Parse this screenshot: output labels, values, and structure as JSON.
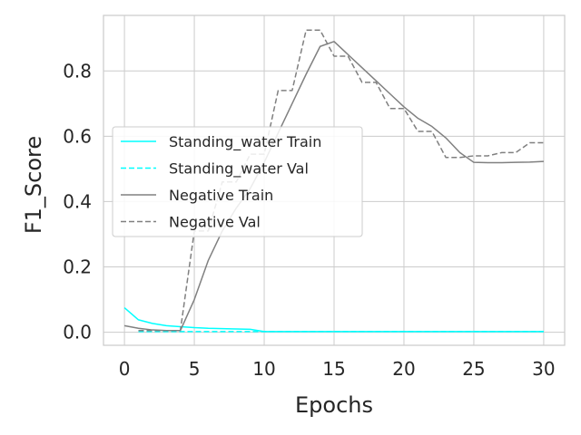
{
  "chart_data": {
    "type": "line",
    "title": "",
    "xlabel": "Epochs",
    "ylabel": "F1_Score",
    "xlim": [
      -1.5,
      31.5
    ],
    "ylim": [
      -0.04,
      0.97
    ],
    "x_ticks": [
      0,
      5,
      10,
      15,
      20,
      25,
      30
    ],
    "x_tick_labels": [
      "0",
      "5",
      "10",
      "15",
      "20",
      "25",
      "30"
    ],
    "y_ticks": [
      0.0,
      0.2,
      0.4,
      0.6,
      0.8
    ],
    "y_tick_labels": [
      "0.0",
      "0.2",
      "0.4",
      "0.6",
      "0.8"
    ],
    "grid": true,
    "legend_position": "center-left",
    "series": [
      {
        "name": "Standing_water Train",
        "color": "#00ffff",
        "style": "solid",
        "x": [
          0,
          1,
          2,
          3,
          4,
          5,
          6,
          7,
          8,
          9,
          10,
          11,
          12,
          13,
          14,
          15,
          16,
          17,
          18,
          19,
          20,
          21,
          22,
          23,
          24,
          25,
          26,
          27,
          28,
          29,
          30
        ],
        "y": [
          0.075,
          0.038,
          0.027,
          0.02,
          0.017,
          0.014,
          0.012,
          0.011,
          0.01,
          0.009,
          0.002,
          0.002,
          0.002,
          0.002,
          0.002,
          0.002,
          0.002,
          0.002,
          0.002,
          0.002,
          0.002,
          0.002,
          0.002,
          0.002,
          0.002,
          0.002,
          0.002,
          0.002,
          0.002,
          0.002,
          0.002
        ]
      },
      {
        "name": "Standing_water Val",
        "color": "#00ffff",
        "style": "dashed",
        "x": [
          1,
          2,
          3,
          4,
          5,
          6,
          7,
          8,
          9,
          10,
          11,
          12,
          13,
          14,
          15,
          16,
          17,
          18,
          19,
          20,
          21,
          22,
          23,
          24,
          25,
          26,
          27,
          28,
          29,
          30
        ],
        "y": [
          0.002,
          0.002,
          0.002,
          0.002,
          0.002,
          0.002,
          0.002,
          0.002,
          0.002,
          0.002,
          0.002,
          0.002,
          0.002,
          0.002,
          0.002,
          0.002,
          0.002,
          0.002,
          0.002,
          0.002,
          0.002,
          0.002,
          0.002,
          0.002,
          0.002,
          0.002,
          0.002,
          0.002,
          0.002,
          0.002
        ]
      },
      {
        "name": "Negative Train",
        "color": "#808080",
        "style": "solid",
        "x": [
          0,
          1,
          2,
          3,
          4,
          5,
          6,
          7,
          8,
          9,
          10,
          11,
          12,
          13,
          14,
          15,
          16,
          17,
          18,
          19,
          20,
          21,
          22,
          23,
          24,
          25,
          26,
          27,
          28,
          29,
          30
        ],
        "y": [
          0.02,
          0.012,
          0.007,
          0.005,
          0.005,
          0.1,
          0.22,
          0.31,
          0.38,
          0.44,
          0.52,
          0.61,
          0.7,
          0.79,
          0.875,
          0.89,
          0.85,
          0.81,
          0.77,
          0.73,
          0.69,
          0.655,
          0.63,
          0.595,
          0.55,
          0.52,
          0.519,
          0.519,
          0.52,
          0.521,
          0.523
        ]
      },
      {
        "name": "Negative Val",
        "color": "#808080",
        "style": "dashed",
        "x": [
          1,
          2,
          3,
          4,
          5,
          6,
          7,
          8,
          9,
          10,
          11,
          12,
          13,
          14,
          15,
          16,
          17,
          18,
          19,
          20,
          21,
          22,
          23,
          24,
          25,
          26,
          27,
          28,
          29,
          30
        ],
        "y": [
          0.005,
          0.005,
          0.005,
          0.005,
          0.31,
          0.31,
          0.46,
          0.46,
          0.545,
          0.545,
          0.74,
          0.74,
          0.925,
          0.925,
          0.845,
          0.845,
          0.765,
          0.765,
          0.685,
          0.685,
          0.615,
          0.615,
          0.535,
          0.535,
          0.54,
          0.54,
          0.55,
          0.55,
          0.58,
          0.58
        ]
      }
    ]
  }
}
